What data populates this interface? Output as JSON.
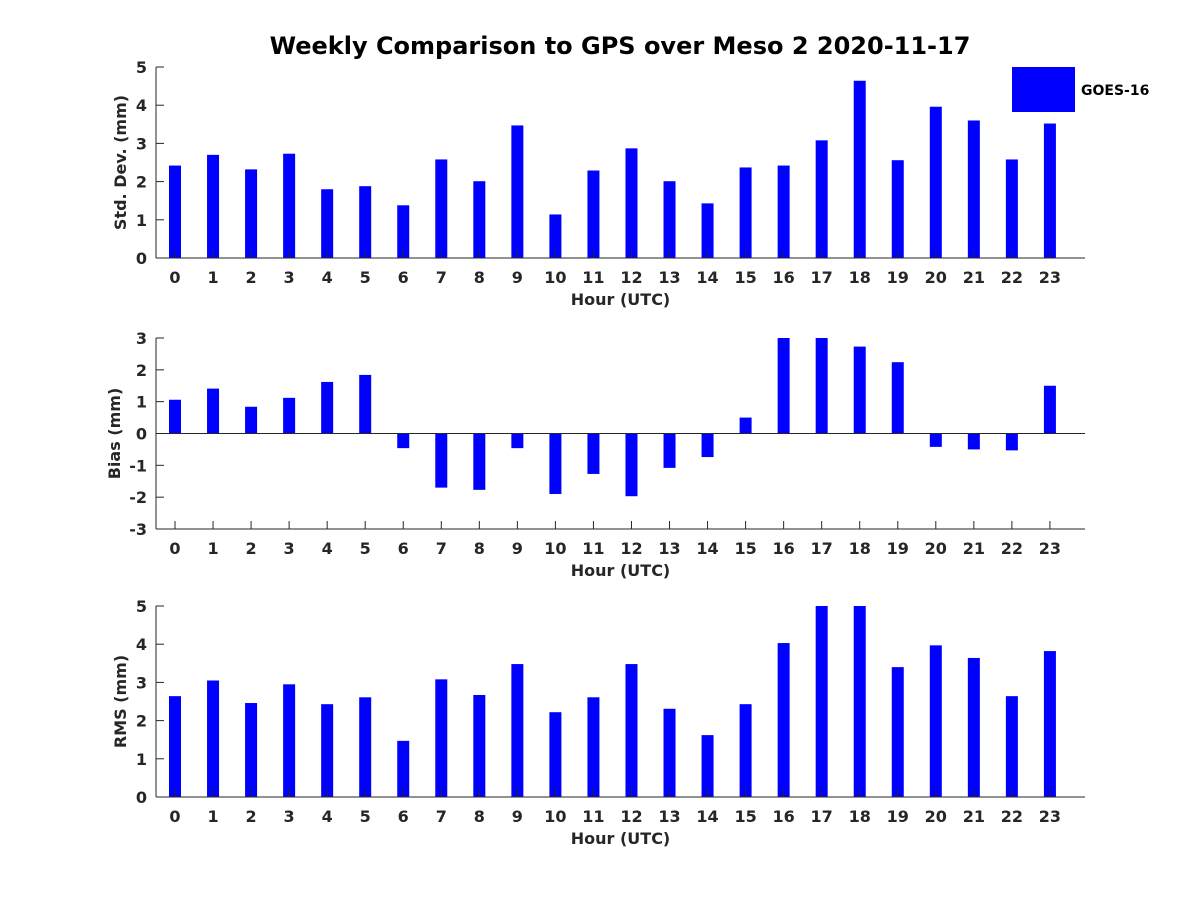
{
  "title": "Weekly Comparison to GPS over Meso 2 2020-11-17",
  "legend": {
    "label": "GOES-16",
    "color": "#0000ff"
  },
  "chart_data": [
    {
      "type": "bar",
      "title": "Weekly Comparison to GPS over Meso 2 2020-11-17",
      "xlabel": "Hour (UTC)",
      "ylabel": "Std. Dev. (mm)",
      "ylim": [
        0,
        5
      ],
      "yticks": [
        "0",
        "1",
        "2",
        "3",
        "4",
        "5"
      ],
      "categories": [
        "0",
        "1",
        "2",
        "3",
        "4",
        "5",
        "6",
        "7",
        "8",
        "9",
        "10",
        "11",
        "12",
        "13",
        "14",
        "15",
        "16",
        "17",
        "18",
        "19",
        "20",
        "21",
        "22",
        "23"
      ],
      "series": [
        {
          "name": "GOES-16",
          "color": "#0000ff",
          "values": [
            2.42,
            2.7,
            2.32,
            2.73,
            1.8,
            1.88,
            1.38,
            2.58,
            2.01,
            3.47,
            1.14,
            2.29,
            2.87,
            2.01,
            1.43,
            2.37,
            2.42,
            3.08,
            4.64,
            2.56,
            3.96,
            3.6,
            2.58,
            3.52
          ]
        }
      ],
      "legend": "top-right"
    },
    {
      "type": "bar",
      "xlabel": "Hour (UTC)",
      "ylabel": "Bias (mm)",
      "ylim": [
        -3,
        3
      ],
      "yticks": [
        "-3",
        "-2",
        "-1",
        "0",
        "1",
        "2",
        "3"
      ],
      "categories": [
        "0",
        "1",
        "2",
        "3",
        "4",
        "5",
        "6",
        "7",
        "8",
        "9",
        "10",
        "11",
        "12",
        "13",
        "14",
        "15",
        "16",
        "17",
        "18",
        "19",
        "20",
        "21",
        "22",
        "23"
      ],
      "series": [
        {
          "name": "GOES-16",
          "color": "#0000ff",
          "values": [
            1.06,
            1.41,
            0.84,
            1.12,
            1.62,
            1.84,
            -0.46,
            -1.7,
            -1.77,
            -0.46,
            -1.9,
            -1.27,
            -1.97,
            -1.08,
            -0.74,
            0.5,
            3.0,
            3.0,
            2.73,
            2.24,
            -0.42,
            -0.5,
            -0.53,
            1.5
          ]
        }
      ]
    },
    {
      "type": "bar",
      "xlabel": "Hour (UTC)",
      "ylabel": "RMS (mm)",
      "ylim": [
        0,
        5
      ],
      "yticks": [
        "0",
        "1",
        "2",
        "3",
        "4",
        "5"
      ],
      "categories": [
        "0",
        "1",
        "2",
        "3",
        "4",
        "5",
        "6",
        "7",
        "8",
        "9",
        "10",
        "11",
        "12",
        "13",
        "14",
        "15",
        "16",
        "17",
        "18",
        "19",
        "20",
        "21",
        "22",
        "23"
      ],
      "series": [
        {
          "name": "GOES-16",
          "color": "#0000ff",
          "values": [
            2.64,
            3.05,
            2.46,
            2.95,
            2.43,
            2.61,
            1.47,
            3.08,
            2.67,
            3.48,
            2.22,
            2.61,
            3.48,
            2.31,
            1.62,
            2.43,
            4.03,
            5.0,
            5.0,
            3.4,
            3.97,
            3.64,
            2.64,
            3.82
          ]
        }
      ]
    }
  ]
}
